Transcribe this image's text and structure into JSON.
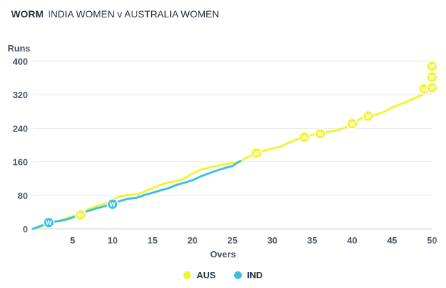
{
  "header": {
    "label_strong": "WORM",
    "label_rest": "INDIA WOMEN v AUSTRALIA WOMEN"
  },
  "chart_data": {
    "type": "line",
    "title": "WORM",
    "subtitle": "INDIA WOMEN v AUSTRALIA WOMEN",
    "xlabel": "Overs",
    "ylabel": "Runs",
    "xlim": [
      0,
      50
    ],
    "ylim": [
      0,
      400
    ],
    "xticks": [
      5,
      10,
      15,
      20,
      25,
      30,
      35,
      40,
      45,
      50
    ],
    "yticks": [
      0,
      80,
      160,
      240,
      320,
      400
    ],
    "grid": true,
    "legend_position": "bottom",
    "wicket_marker_label": "W",
    "series": [
      {
        "name": "AUS",
        "color": "#f3f333",
        "x": [
          0,
          1,
          2,
          3,
          4,
          5,
          6,
          7,
          8,
          9,
          10,
          11,
          12,
          13,
          14,
          15,
          16,
          17,
          18,
          19,
          20,
          21,
          22,
          23,
          24,
          25,
          26,
          27,
          28,
          29,
          30,
          31,
          32,
          33,
          34,
          35,
          36,
          37,
          38,
          39,
          40,
          41,
          42,
          43,
          44,
          45,
          46,
          47,
          48,
          49,
          50
        ],
        "y": [
          0,
          5,
          11,
          18,
          24,
          30,
          33,
          47,
          54,
          60,
          70,
          78,
          81,
          82,
          89,
          97,
          105,
          111,
          114,
          120,
          132,
          141,
          146,
          150,
          154,
          157,
          161,
          172,
          180,
          187,
          192,
          196,
          205,
          213,
          220,
          224,
          229,
          232,
          234,
          241,
          251,
          262,
          270,
          273,
          279,
          290,
          297,
          305,
          313,
          322,
          332
        ],
        "wickets": [
          [
            6,
            33
          ],
          [
            28,
            181
          ],
          [
            34,
            219
          ],
          [
            36,
            227
          ],
          [
            40,
            251
          ],
          [
            42,
            269
          ],
          [
            49,
            334
          ],
          [
            50,
            337
          ],
          [
            50,
            362
          ],
          [
            50,
            388
          ]
        ]
      },
      {
        "name": "IND",
        "color": "#3cbfe5",
        "x": [
          0,
          1,
          2,
          3,
          4,
          5,
          6,
          7,
          8,
          9,
          10,
          11,
          12,
          13,
          14,
          15,
          16,
          17,
          18,
          19,
          20,
          21,
          22,
          23,
          24,
          25,
          26
        ],
        "y": [
          0,
          7,
          15,
          18,
          21,
          27,
          37,
          43,
          49,
          54,
          60,
          67,
          72,
          74,
          81,
          86,
          92,
          97,
          105,
          110,
          116,
          125,
          132,
          139,
          145,
          150,
          162
        ],
        "wickets": [
          [
            2,
            15
          ],
          [
            10,
            59
          ]
        ]
      }
    ]
  }
}
